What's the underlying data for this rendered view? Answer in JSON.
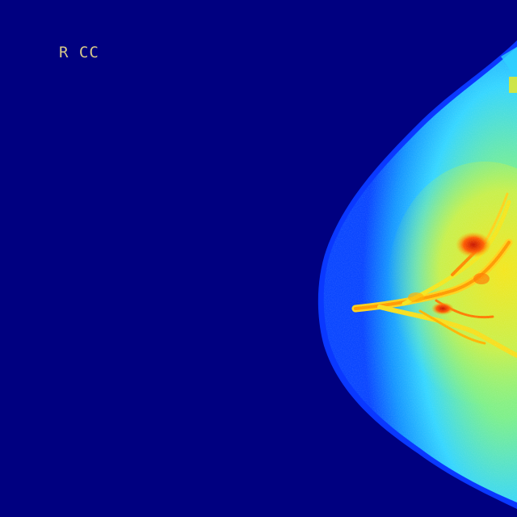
{
  "image": {
    "view_label": "R CC",
    "description_kind": "false-color mammogram",
    "colors": {
      "background": "#000080",
      "edge": "#0a3cff",
      "skin": "#0070ff",
      "tissue_low": "#2fd1ff",
      "tissue_mid": "#8af27a",
      "tissue_high": "#f2e81a",
      "dense": "#ff7a00",
      "densest": "#d01a00",
      "label": "#d7c98a"
    }
  }
}
